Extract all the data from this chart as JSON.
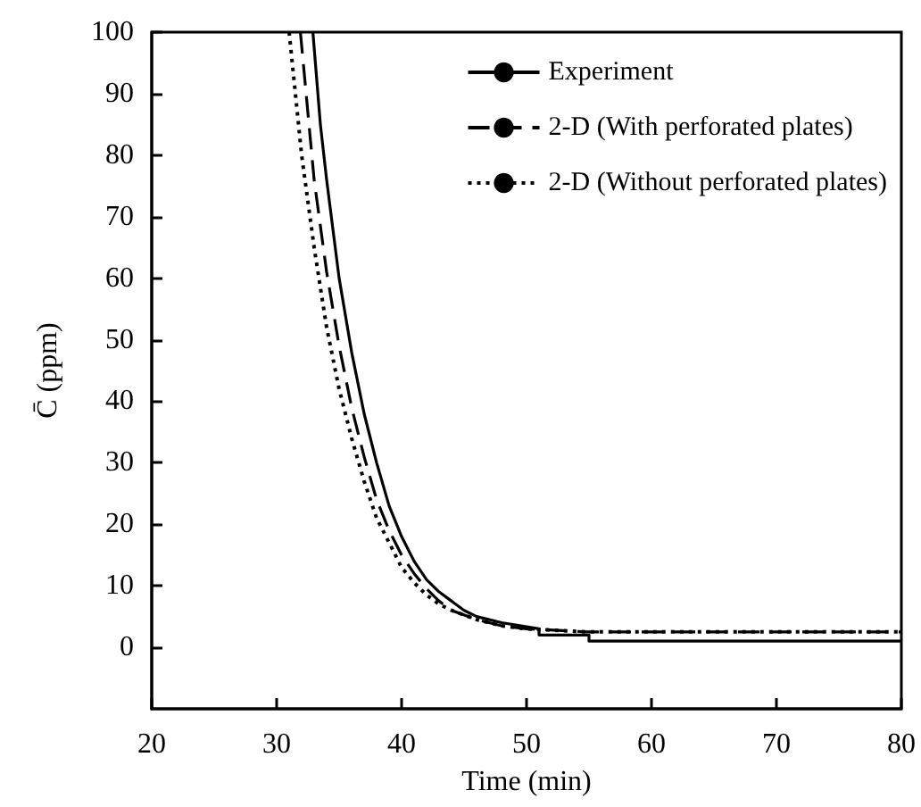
{
  "chart_data": {
    "type": "line",
    "xlabel": "Time (min)",
    "ylabel": "C̄ (ppm)",
    "xlim": [
      20,
      80
    ],
    "xticks": [
      20,
      30,
      40,
      50,
      60,
      70,
      80
    ],
    "ylim": [
      -10,
      100
    ],
    "yticks": [
      0,
      10,
      20,
      30,
      40,
      50,
      60,
      70,
      80,
      90,
      100
    ],
    "grid": false,
    "legend": "top right",
    "marker": "none",
    "series": [
      {
        "name": "Experiment",
        "color": "#000000",
        "line_style": "solid",
        "x": [
          32.9,
          33.5,
          34,
          35,
          36,
          37,
          38,
          39,
          40,
          41,
          42,
          43,
          44,
          45,
          46,
          48,
          51,
          51,
          55,
          55,
          80
        ],
        "values": [
          100,
          85,
          76,
          60,
          48,
          38,
          30,
          23,
          18,
          14,
          11,
          9,
          7.5,
          6,
          5,
          4,
          3,
          2,
          2,
          1,
          1
        ]
      },
      {
        "name": "2-D (With perforated plates)",
        "color": "#000000",
        "line_style": "dashed",
        "x": [
          31.9,
          33,
          34,
          35,
          36,
          37,
          38,
          39,
          40,
          41,
          42,
          43,
          44,
          46,
          48,
          50,
          55,
          80
        ],
        "values": [
          100,
          76,
          61,
          49,
          39,
          31,
          24,
          19,
          15,
          12,
          9.5,
          7.5,
          6,
          4.5,
          3.5,
          3,
          2.5,
          2.5
        ]
      },
      {
        "name": "2-D (Without perforated plates)",
        "color": "#000000",
        "line_style": "dotted",
        "x": [
          31,
          32,
          33,
          34,
          35,
          36,
          37,
          38,
          39,
          40,
          41,
          42,
          43,
          44,
          46,
          48,
          50,
          55,
          80
        ],
        "values": [
          100,
          80,
          65,
          52,
          42,
          34,
          27,
          21,
          17,
          13,
          10.5,
          8.5,
          7,
          6,
          4.5,
          3.5,
          3,
          2.5,
          2.5
        ]
      }
    ]
  }
}
